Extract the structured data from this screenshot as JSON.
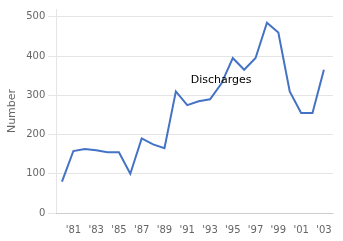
{
  "chart_data": {
    "type": "line",
    "y_label": "Number",
    "x": [
      1980,
      1981,
      1982,
      1983,
      1984,
      1985,
      1986,
      1987,
      1988,
      1989,
      1990,
      1991,
      1992,
      1993,
      1994,
      1995,
      1996,
      1997,
      1998,
      1999,
      2000,
      2001,
      2002,
      2003
    ],
    "values": [
      80,
      158,
      163,
      160,
      155,
      155,
      100,
      190,
      175,
      165,
      310,
      275,
      285,
      290,
      330,
      395,
      365,
      395,
      485,
      460,
      310,
      255,
      255,
      365
    ],
    "color": "#4472C4",
    "xlim": [
      1979.5,
      2003.8
    ],
    "xticks": [
      {
        "value": 1981,
        "label": "'81"
      },
      {
        "value": 1983,
        "label": "'83"
      },
      {
        "value": 1985,
        "label": "'85"
      },
      {
        "value": 1987,
        "label": "'87"
      },
      {
        "value": 1989,
        "label": "'89"
      },
      {
        "value": 1991,
        "label": "'91"
      },
      {
        "value": 1993,
        "label": "'93"
      },
      {
        "value": 1995,
        "label": "'95"
      },
      {
        "value": 1997,
        "label": "'97"
      },
      {
        "value": 1999,
        "label": "'99"
      },
      {
        "value": 2001,
        "label": "'01"
      },
      {
        "value": 2003,
        "label": "'03"
      }
    ],
    "ylim": [
      0,
      520
    ],
    "yticks": [
      0,
      100,
      200,
      300,
      400,
      500
    ],
    "grid": "y",
    "annotations": [
      {
        "text": "Discharges",
        "x": 1991.3,
        "y": 325
      }
    ]
  }
}
